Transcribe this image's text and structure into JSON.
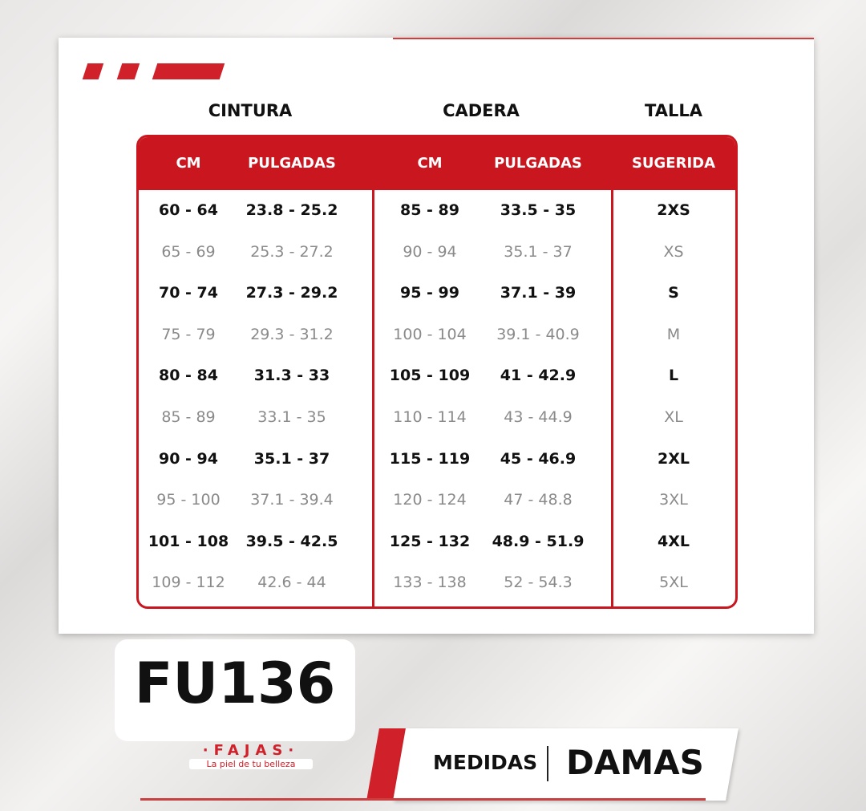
{
  "groups": {
    "cintura": "CINTURA",
    "cadera": "CADERA",
    "talla": "TALLA"
  },
  "headers": [
    "CM",
    "PULGADAS",
    "CM",
    "PULGADAS",
    "SUGERIDA"
  ],
  "rows": [
    [
      "60 - 64",
      "23.8 - 25.2",
      "85 - 89",
      "33.5 - 35",
      "2XS"
    ],
    [
      "65 - 69",
      "25.3 - 27.2",
      "90 - 94",
      "35.1 - 37",
      "XS"
    ],
    [
      "70 - 74",
      "27.3 - 29.2",
      "95 - 99",
      "37.1 - 39",
      "S"
    ],
    [
      "75 - 79",
      "29.3 - 31.2",
      "100 - 104",
      "39.1 - 40.9",
      "M"
    ],
    [
      "80 - 84",
      "31.3 - 33",
      "105 - 109",
      "41 - 42.9",
      "L"
    ],
    [
      "85 - 89",
      "33.1 - 35",
      "110 - 114",
      "43 - 44.9",
      "XL"
    ],
    [
      "90 - 94",
      "35.1 - 37",
      "115 - 119",
      "45 - 46.9",
      "2XL"
    ],
    [
      "95 - 100",
      "37.1 - 39.4",
      "120 - 124",
      "47 - 48.8",
      "3XL"
    ],
    [
      "101 - 108",
      "39.5 - 42.5",
      "125 - 132",
      "48.9 - 51.9",
      "4XL"
    ],
    [
      "109 - 112",
      "42.6 - 44",
      "133 - 138",
      "52 - 54.3",
      "5XL"
    ]
  ],
  "product_code": "FU136",
  "logo": {
    "name": "·FAJAS·",
    "tagline": "La piel de tu belleza"
  },
  "banner": {
    "left": "MEDIDAS",
    "right": "DAMAS"
  },
  "colors": {
    "accent": "#c9161f"
  }
}
